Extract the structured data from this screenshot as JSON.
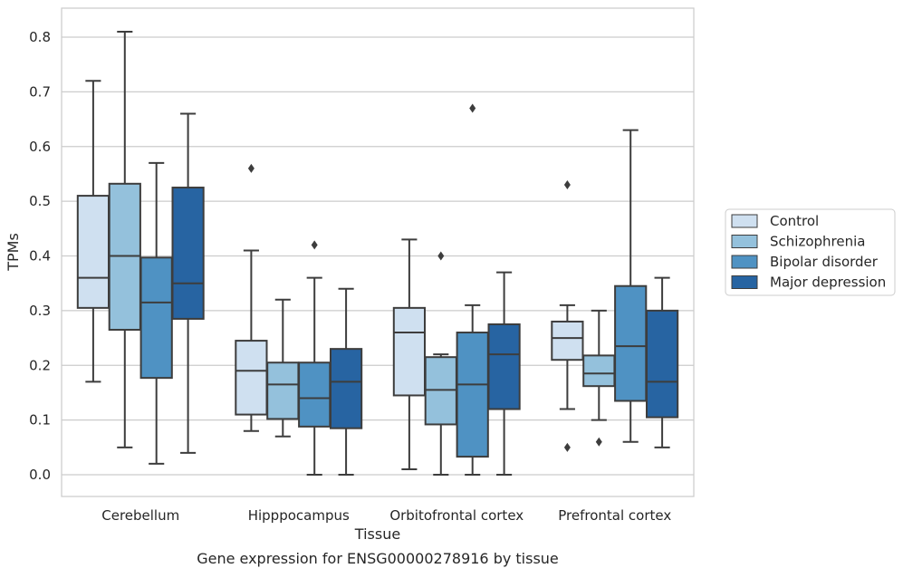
{
  "chart_data": {
    "type": "box",
    "title": "",
    "xlabel": "Tissue",
    "ylabel": "TPMs",
    "caption": "Gene expression for ENSG00000278916 by tissue",
    "ylim": [
      -0.04,
      0.85
    ],
    "yticks": [
      0.0,
      0.1,
      0.2,
      0.3,
      0.4,
      0.5,
      0.6,
      0.7,
      0.8
    ],
    "ytick_labels": [
      "0.0",
      "0.1",
      "0.2",
      "0.3",
      "0.4",
      "0.5",
      "0.6",
      "0.7",
      "0.8"
    ],
    "grid": true,
    "legend_position": "right",
    "categories": [
      "Cerebellum",
      "Hipppocampus",
      "Orbitofrontal cortex",
      "Prefrontal cortex"
    ],
    "series": [
      {
        "name": "Control",
        "color": "#cfe0f0",
        "boxes": [
          {
            "whislo": 0.17,
            "q1": 0.305,
            "median": 0.36,
            "q3": 0.51,
            "whishi": 0.72,
            "fliers": []
          },
          {
            "whislo": 0.08,
            "q1": 0.11,
            "median": 0.19,
            "q3": 0.245,
            "whishi": 0.41,
            "fliers": [
              0.56
            ]
          },
          {
            "whislo": 0.01,
            "q1": 0.145,
            "median": 0.26,
            "q3": 0.305,
            "whishi": 0.43,
            "fliers": []
          },
          {
            "whislo": 0.12,
            "q1": 0.21,
            "median": 0.25,
            "q3": 0.28,
            "whishi": 0.31,
            "fliers": [
              0.53,
              0.05
            ]
          }
        ]
      },
      {
        "name": "Schizophrenia",
        "color": "#94c1dc",
        "boxes": [
          {
            "whislo": 0.05,
            "q1": 0.265,
            "median": 0.4,
            "q3": 0.532,
            "whishi": 0.81,
            "fliers": []
          },
          {
            "whislo": 0.07,
            "q1": 0.102,
            "median": 0.165,
            "q3": 0.205,
            "whishi": 0.32,
            "fliers": []
          },
          {
            "whislo": 0.0,
            "q1": 0.092,
            "median": 0.155,
            "q3": 0.215,
            "whishi": 0.22,
            "fliers": [
              0.4
            ]
          },
          {
            "whislo": 0.1,
            "q1": 0.162,
            "median": 0.185,
            "q3": 0.218,
            "whishi": 0.3,
            "fliers": [
              0.06
            ]
          }
        ]
      },
      {
        "name": "Bipolar disorder",
        "color": "#4f92c3",
        "boxes": [
          {
            "whislo": 0.02,
            "q1": 0.177,
            "median": 0.315,
            "q3": 0.397,
            "whishi": 0.57,
            "fliers": []
          },
          {
            "whislo": 0.0,
            "q1": 0.088,
            "median": 0.14,
            "q3": 0.205,
            "whishi": 0.36,
            "fliers": [
              0.42
            ]
          },
          {
            "whislo": 0.0,
            "q1": 0.033,
            "median": 0.165,
            "q3": 0.26,
            "whishi": 0.31,
            "fliers": [
              0.67
            ]
          },
          {
            "whislo": 0.06,
            "q1": 0.135,
            "median": 0.235,
            "q3": 0.345,
            "whishi": 0.63,
            "fliers": []
          }
        ]
      },
      {
        "name": "Major depression",
        "color": "#2764a2",
        "boxes": [
          {
            "whislo": 0.04,
            "q1": 0.285,
            "median": 0.35,
            "q3": 0.525,
            "whishi": 0.66,
            "fliers": []
          },
          {
            "whislo": 0.0,
            "q1": 0.085,
            "median": 0.17,
            "q3": 0.23,
            "whishi": 0.34,
            "fliers": []
          },
          {
            "whislo": 0.0,
            "q1": 0.12,
            "median": 0.22,
            "q3": 0.275,
            "whishi": 0.37,
            "fliers": []
          },
          {
            "whislo": 0.05,
            "q1": 0.105,
            "median": 0.17,
            "q3": 0.3,
            "whishi": 0.36,
            "fliers": []
          }
        ]
      }
    ]
  }
}
